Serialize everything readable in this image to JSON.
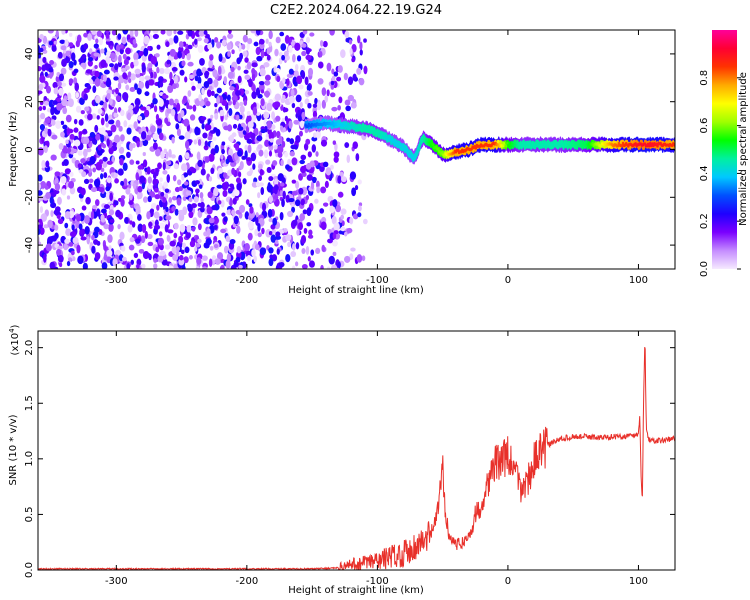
{
  "title": "C2E2.2024.064.22.19.G24",
  "chart_data": [
    {
      "type": "heatmap",
      "xlabel": "Height of straight line (km)",
      "ylabel": "Frequency (Hz)",
      "xlim": [
        -360,
        128
      ],
      "ylim": [
        -50,
        50
      ],
      "xticks": [
        -300,
        -200,
        -100,
        0,
        100
      ],
      "yticks": [
        -40,
        -20,
        0,
        20,
        40
      ],
      "grid": false,
      "noise_region": {
        "x_start": -360,
        "x_end": -108,
        "freq_range": [
          -50,
          50
        ],
        "amplitude_range": [
          0.0,
          0.25
        ]
      },
      "signal_ridge": {
        "x": [
          -155,
          -140,
          -125,
          -110,
          -100,
          -90,
          -80,
          -72,
          -65,
          -58,
          -50,
          -45,
          -40,
          -30,
          -20,
          -10,
          0,
          10,
          20,
          40,
          60,
          80,
          100,
          110,
          128
        ],
        "frequency_hz": [
          10,
          11,
          10,
          9,
          7,
          4,
          1,
          -4,
          5,
          2,
          -2,
          -2,
          -1,
          0,
          2,
          2,
          2,
          2,
          2,
          2,
          2,
          2,
          2,
          2,
          2
        ],
        "amplitude": [
          0.3,
          0.35,
          0.4,
          0.45,
          0.45,
          0.4,
          0.4,
          0.4,
          0.45,
          0.55,
          0.6,
          0.75,
          0.85,
          0.85,
          0.85,
          0.85,
          0.55,
          0.45,
          0.45,
          0.45,
          0.5,
          0.8,
          0.9,
          0.9,
          0.85
        ]
      },
      "colorbar": {
        "label": "Normalized spectral amplitude",
        "range": [
          0.0,
          1.0
        ],
        "ticks": [
          0.0,
          0.2,
          0.4,
          0.6,
          0.8
        ],
        "colors": [
          "#f6eaff",
          "#c58cff",
          "#7a00ff",
          "#1f00ff",
          "#0050ff",
          "#00c8ff",
          "#00f0a0",
          "#00ff00",
          "#a0ff00",
          "#ffff00",
          "#ffaa00",
          "#ff3300",
          "#ff0033",
          "#ff0099"
        ]
      }
    },
    {
      "type": "line",
      "xlabel": "Height of straight line (km)",
      "ylabel": "SNR (10 * v/v)",
      "multiplier_label": "(x10",
      "multiplier_exp": "4",
      "xlim": [
        -360,
        128
      ],
      "ylim": [
        0.0,
        2.15
      ],
      "xticks": [
        -300,
        -200,
        -100,
        0,
        100
      ],
      "yticks": [
        0.0,
        0.5,
        1.0,
        1.5,
        2.0
      ],
      "color": "#e8302a",
      "series": [
        {
          "x": [
            -360,
            -300,
            -250,
            -200,
            -150,
            -130,
            -120,
            -110,
            -100,
            -90,
            -80,
            -70,
            -60,
            -55,
            -52,
            -50,
            -48,
            -45,
            -42,
            -40,
            -35,
            -30,
            -28,
            -25,
            -22,
            -20,
            -15,
            -10,
            -5,
            0,
            5,
            10,
            15,
            20,
            25,
            30,
            35,
            40,
            50,
            60,
            70,
            80,
            90,
            95,
            100,
            101,
            102,
            103,
            104,
            105,
            106,
            108,
            110,
            115,
            120,
            125,
            128
          ],
          "y": [
            0.01,
            0.01,
            0.01,
            0.01,
            0.01,
            0.02,
            0.04,
            0.06,
            0.08,
            0.12,
            0.15,
            0.22,
            0.3,
            0.45,
            0.7,
            0.9,
            0.55,
            0.3,
            0.28,
            0.22,
            0.25,
            0.3,
            0.35,
            0.5,
            0.55,
            0.6,
            0.8,
            0.95,
            1.0,
            1.02,
            0.9,
            0.72,
            0.8,
            0.98,
            1.05,
            1.12,
            1.15,
            1.18,
            1.2,
            1.2,
            1.19,
            1.2,
            1.2,
            1.21,
            1.22,
            1.4,
            0.85,
            0.6,
            1.6,
            2.1,
            1.25,
            1.18,
            1.17,
            1.16,
            1.17,
            1.18,
            1.18
          ]
        }
      ]
    }
  ]
}
